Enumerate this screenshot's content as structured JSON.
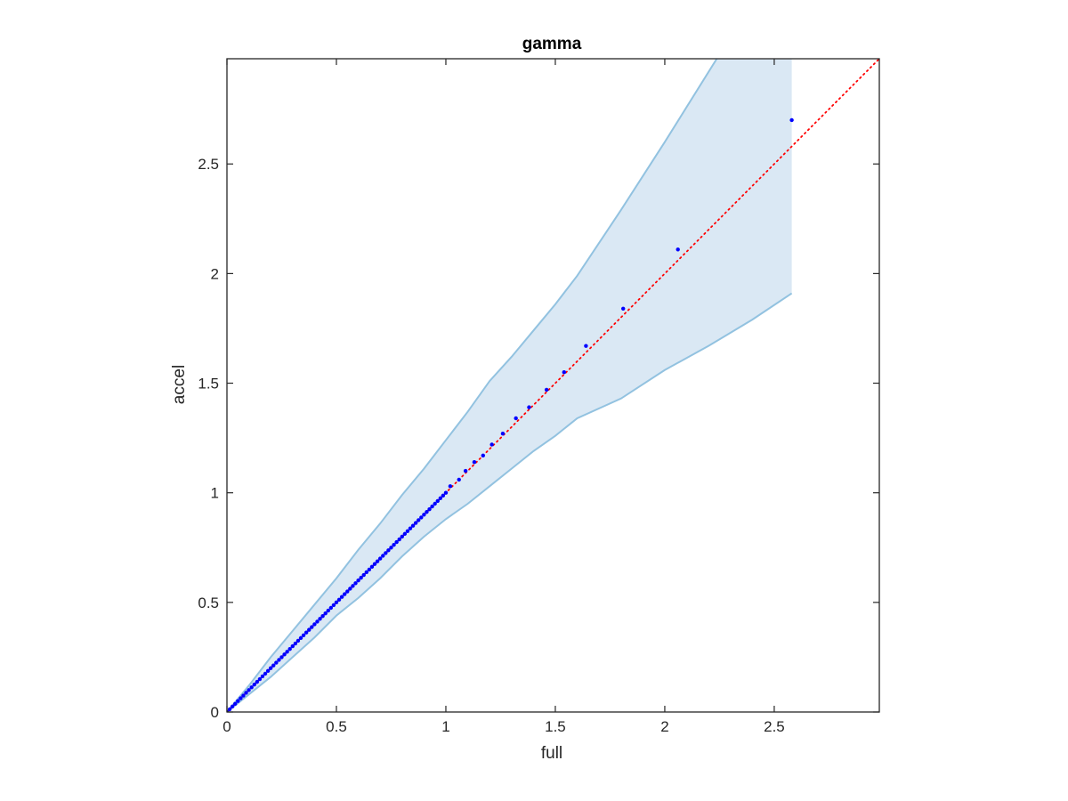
{
  "chart_data": {
    "type": "scatter",
    "title": "gamma",
    "xlabel": "full",
    "ylabel": "accel",
    "xlim": [
      0,
      2.98
    ],
    "ylim": [
      0,
      2.98
    ],
    "xticks": [
      "0",
      "0.5",
      "1",
      "1.5",
      "2",
      "2.5"
    ],
    "yticks": [
      "0",
      "0.5",
      "1",
      "1.5",
      "2",
      "2.5"
    ],
    "xtick_values": [
      0,
      0.5,
      1,
      1.5,
      2,
      2.5
    ],
    "ytick_values": [
      0,
      0.5,
      1,
      1.5,
      2,
      2.5
    ],
    "grid": false,
    "legend": "none",
    "band": {
      "color": "#dae8f4",
      "edge_color": "#92c2e0",
      "upper": [
        [
          0,
          0
        ],
        [
          0.1,
          0.12
        ],
        [
          0.2,
          0.25
        ],
        [
          0.3,
          0.37
        ],
        [
          0.4,
          0.49
        ],
        [
          0.5,
          0.61
        ],
        [
          0.6,
          0.74
        ],
        [
          0.7,
          0.86
        ],
        [
          0.8,
          0.99
        ],
        [
          0.9,
          1.11
        ],
        [
          1.0,
          1.24
        ],
        [
          1.1,
          1.37
        ],
        [
          1.2,
          1.51
        ],
        [
          1.3,
          1.62
        ],
        [
          1.4,
          1.74
        ],
        [
          1.5,
          1.86
        ],
        [
          1.6,
          1.99
        ],
        [
          1.8,
          2.29
        ],
        [
          2.0,
          2.6
        ],
        [
          2.25,
          3.0
        ],
        [
          2.58,
          3.0
        ]
      ],
      "lower": [
        [
          0,
          0
        ],
        [
          0.1,
          0.08
        ],
        [
          0.2,
          0.16
        ],
        [
          0.3,
          0.25
        ],
        [
          0.4,
          0.34
        ],
        [
          0.5,
          0.44
        ],
        [
          0.6,
          0.52
        ],
        [
          0.7,
          0.61
        ],
        [
          0.8,
          0.71
        ],
        [
          0.9,
          0.8
        ],
        [
          1.0,
          0.88
        ],
        [
          1.1,
          0.95
        ],
        [
          1.2,
          1.03
        ],
        [
          1.3,
          1.11
        ],
        [
          1.4,
          1.19
        ],
        [
          1.5,
          1.26
        ],
        [
          1.6,
          1.34
        ],
        [
          1.8,
          1.43
        ],
        [
          2.0,
          1.56
        ],
        [
          2.2,
          1.67
        ],
        [
          2.4,
          1.79
        ],
        [
          2.58,
          1.91
        ]
      ]
    },
    "reference_line": {
      "from": [
        0,
        0
      ],
      "to": [
        2.98,
        2.98
      ],
      "color": "#ff0000",
      "style": "dotted"
    },
    "series": [
      {
        "color": "#0000ff",
        "points": [
          [
            1.02,
            1.03
          ],
          [
            1.06,
            1.06
          ],
          [
            1.09,
            1.1
          ],
          [
            1.13,
            1.14
          ],
          [
            1.17,
            1.17
          ],
          [
            1.21,
            1.22
          ],
          [
            1.26,
            1.27
          ],
          [
            1.32,
            1.34
          ],
          [
            1.38,
            1.39
          ],
          [
            1.46,
            1.47
          ],
          [
            1.54,
            1.55
          ],
          [
            1.64,
            1.67
          ],
          [
            1.81,
            1.84
          ],
          [
            2.06,
            2.11
          ],
          [
            2.58,
            2.7
          ]
        ],
        "dense_segment": {
          "from": 0,
          "to": 1.0,
          "count": 80
        }
      }
    ]
  }
}
